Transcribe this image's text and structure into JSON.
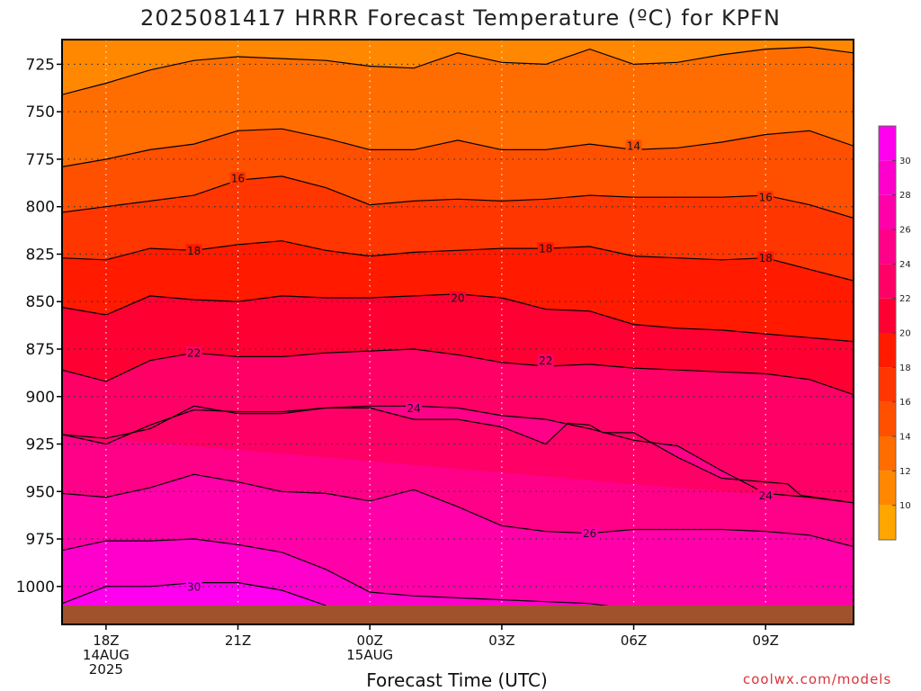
{
  "title": "2025081417 HRRR Forecast Temperature (ºC) for KPFN",
  "x_axis_label": "Forecast Time (UTC)",
  "credit": "coolwx.com/models",
  "colors": {
    "colorbar": [
      "#ffa500",
      "#ff8800",
      "#ff6d00",
      "#ff5000",
      "#ff3600",
      "#ff1a00",
      "#ff0033",
      "#ff0066",
      "#ff0088",
      "#ff00a9",
      "#ff00cc",
      "#ff00ee"
    ],
    "ground": "#a0522d",
    "contour_line": "#000000"
  },
  "chart_data": {
    "type": "contour",
    "title": "2025081417 HRRR Forecast Temperature (ºC) for KPFN",
    "xlabel": "Forecast Time (UTC)",
    "ylabel": "",
    "y_axis": {
      "label": "",
      "ticks": [
        725,
        750,
        775,
        800,
        825,
        850,
        875,
        900,
        925,
        950,
        975,
        1000
      ],
      "range": [
        712,
        1020
      ],
      "scale": "linear",
      "inverted": true
    },
    "x_axis": {
      "ticks": [
        {
          "hour": 18,
          "label": "18Z",
          "sublabel": "14AUG",
          "sublabel2": "2025"
        },
        {
          "hour": 21,
          "label": "21Z"
        },
        {
          "hour": 24,
          "label": "00Z",
          "sublabel": "15AUG"
        },
        {
          "hour": 27,
          "label": "03Z"
        },
        {
          "hour": 30,
          "label": "06Z"
        },
        {
          "hour": 33,
          "label": "09Z"
        }
      ],
      "range": [
        17,
        35
      ]
    },
    "colorbar": {
      "ticks": [
        10,
        12,
        14,
        16,
        18,
        20,
        22,
        24,
        26,
        28,
        30
      ],
      "range": [
        8,
        32
      ]
    },
    "grid": true,
    "contours": [
      {
        "level": 12,
        "hours": [
          17,
          18,
          19,
          20,
          21,
          22,
          23,
          24,
          25,
          26,
          27,
          28,
          29,
          30,
          31,
          32,
          33,
          34,
          35
        ],
        "pressure": [
          741,
          735,
          728,
          723,
          721,
          722,
          723,
          726,
          727,
          719,
          724,
          725,
          717,
          725,
          724,
          720,
          717,
          716,
          719
        ]
      },
      {
        "level": 14,
        "hours": [
          17,
          18,
          19,
          20,
          21,
          22,
          23,
          24,
          25,
          26,
          27,
          28,
          29,
          30,
          31,
          32,
          33,
          34,
          35
        ],
        "pressure": [
          779,
          775,
          770,
          767,
          760,
          759,
          764,
          770,
          770,
          765,
          770,
          770,
          767,
          770,
          769,
          766,
          762,
          760,
          768
        ]
      },
      {
        "level": 16,
        "hours": [
          17,
          18,
          19,
          20,
          21,
          22,
          23,
          24,
          25,
          26,
          27,
          28,
          29,
          30,
          31,
          32,
          33,
          34,
          35
        ],
        "pressure": [
          803,
          800,
          797,
          794,
          786,
          784,
          790,
          799,
          797,
          796,
          797,
          796,
          794,
          795,
          795,
          795,
          794,
          799,
          806
        ]
      },
      {
        "level": 18,
        "hours": [
          17,
          18,
          19,
          20,
          21,
          22,
          23,
          24,
          25,
          26,
          27,
          28,
          29,
          30,
          31,
          32,
          33,
          34,
          35
        ],
        "pressure": [
          827,
          828,
          822,
          823,
          820,
          818,
          823,
          826,
          824,
          823,
          822,
          822,
          821,
          826,
          827,
          828,
          827,
          833,
          839
        ]
      },
      {
        "level": 20,
        "hours": [
          17,
          18,
          19,
          20,
          21,
          22,
          23,
          24,
          25,
          26,
          27,
          28,
          29,
          30,
          31,
          32,
          33,
          34,
          35
        ],
        "pressure": [
          853,
          857,
          847,
          849,
          850,
          847,
          848,
          848,
          847,
          846,
          848,
          854,
          855,
          862,
          864,
          865,
          867,
          869,
          871
        ]
      },
      {
        "level": 22,
        "hours": [
          17,
          18,
          19,
          20,
          21,
          22,
          23,
          24,
          25,
          26,
          27,
          28,
          29,
          30,
          31,
          32,
          33,
          34,
          35
        ],
        "pressure": [
          886,
          892,
          881,
          877,
          879,
          879,
          877,
          876,
          875,
          878,
          882,
          884,
          883,
          885,
          886,
          887,
          888,
          891,
          899
        ]
      },
      {
        "level": 24,
        "hours": [
          17,
          18,
          19,
          20,
          21,
          22,
          23,
          24,
          25,
          26,
          27,
          28,
          29,
          30,
          31,
          32,
          33,
          34,
          35,
          33.8,
          33.5,
          32,
          31,
          30,
          29.3,
          29,
          28.5,
          28,
          27,
          26,
          25,
          24,
          23,
          22,
          21,
          20,
          19,
          18,
          17
        ],
        "pressure": [
          920,
          922,
          917,
          905,
          909,
          909,
          906,
          905,
          905,
          906,
          910,
          912,
          917,
          923,
          926,
          939,
          951,
          953,
          956,
          952,
          946,
          943,
          932,
          919,
          919,
          915,
          914,
          925,
          916,
          912,
          912,
          906,
          906,
          908,
          908,
          907,
          915,
          925,
          920
        ]
      },
      {
        "level": 26,
        "hours": [
          17,
          18,
          19,
          20,
          21,
          22,
          23,
          24,
          25,
          26,
          27,
          28,
          29,
          30,
          31,
          32,
          33,
          34,
          35
        ],
        "pressure": [
          951,
          953,
          948,
          941,
          945,
          950,
          951,
          955,
          949,
          958,
          968,
          971,
          972,
          970,
          970,
          970,
          971,
          973,
          979
        ]
      },
      {
        "level": 28,
        "hours": [
          17,
          18,
          19,
          20,
          21,
          22,
          23,
          24,
          25,
          26,
          27,
          28,
          29,
          30,
          31,
          32,
          33,
          34,
          35
        ],
        "pressure": [
          981,
          976,
          976,
          975,
          978,
          982,
          991,
          1003,
          1005,
          1006,
          1007,
          1008,
          1009,
          1012,
          null,
          null,
          null,
          null,
          null
        ]
      },
      {
        "level": 30,
        "hours": [
          17,
          18,
          19,
          20,
          21,
          22,
          23,
          24,
          25,
          26,
          27,
          28,
          29,
          30,
          31,
          32,
          33,
          34,
          35
        ],
        "pressure": [
          1009,
          1000,
          1000,
          998,
          998,
          1002,
          1010,
          null,
          null,
          null,
          null,
          null,
          null,
          null,
          null,
          null,
          null,
          null,
          null
        ]
      }
    ],
    "contour_labels": [
      {
        "level": 14,
        "text": "14",
        "hour": 30.0,
        "pressure": 768
      },
      {
        "level": 16,
        "text": "16",
        "hour": 21.0,
        "pressure": 785
      },
      {
        "level": 16,
        "text": "16",
        "hour": 33.0,
        "pressure": 795
      },
      {
        "level": 18,
        "text": "18",
        "hour": 20.0,
        "pressure": 823
      },
      {
        "level": 18,
        "text": "18",
        "hour": 28.0,
        "pressure": 822
      },
      {
        "level": 18,
        "text": "18",
        "hour": 33.0,
        "pressure": 827
      },
      {
        "level": 20,
        "text": "20",
        "hour": 26.0,
        "pressure": 848
      },
      {
        "level": 22,
        "text": "22",
        "hour": 20.0,
        "pressure": 877
      },
      {
        "level": 22,
        "text": "22",
        "hour": 28.0,
        "pressure": 881
      },
      {
        "level": 24,
        "text": "24",
        "hour": 25.0,
        "pressure": 906
      },
      {
        "level": 24,
        "text": "24",
        "hour": 33.0,
        "pressure": 952
      },
      {
        "level": 26,
        "text": "26",
        "hour": 29.0,
        "pressure": 972
      },
      {
        "level": 30,
        "text": "30",
        "hour": 20.0,
        "pressure": 1000
      }
    ],
    "ground_pressure": 1010
  }
}
